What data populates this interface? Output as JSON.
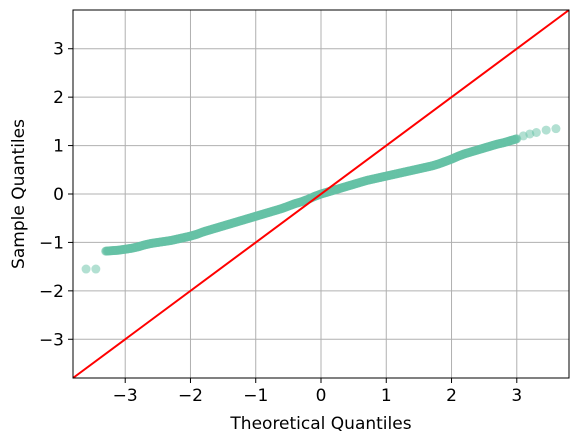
{
  "chart_data": {
    "type": "scatter",
    "title": "",
    "xlabel": "Theoretical Quantiles",
    "ylabel": "Sample Quantiles",
    "xlim": [
      -3.8,
      3.8
    ],
    "ylim": [
      -3.8,
      3.8
    ],
    "xticks": [
      -3,
      -2,
      -1,
      0,
      1,
      2,
      3
    ],
    "yticks": [
      -3,
      -2,
      -1,
      0,
      1,
      2,
      3
    ],
    "xtick_labels": [
      "−3",
      "−2",
      "−1",
      "0",
      "1",
      "2",
      "3"
    ],
    "ytick_labels": [
      "−3",
      "−2",
      "−1",
      "0",
      "1",
      "2",
      "3"
    ],
    "grid": true,
    "reference_line": {
      "points": [
        [
          -3.8,
          -3.8
        ],
        [
          3.8,
          3.8
        ]
      ],
      "color": "#ff0000"
    },
    "series": [
      {
        "marker_color": "#66c2a5",
        "x": [
          -3.6,
          -3.45,
          -3.3,
          -3.2,
          -3.1,
          -3.0,
          -2.9,
          -2.8,
          -2.7,
          -2.6,
          -2.5,
          -2.4,
          -2.3,
          -2.2,
          -2.1,
          -2.0,
          -1.9,
          -1.8,
          -1.7,
          -1.6,
          -1.5,
          -1.4,
          -1.3,
          -1.2,
          -1.1,
          -1.0,
          -0.9,
          -0.8,
          -0.7,
          -0.6,
          -0.5,
          -0.4,
          -0.3,
          -0.2,
          -0.1,
          0.0,
          0.1,
          0.2,
          0.3,
          0.4,
          0.5,
          0.6,
          0.7,
          0.8,
          0.9,
          1.0,
          1.1,
          1.2,
          1.3,
          1.4,
          1.5,
          1.6,
          1.7,
          1.8,
          1.9,
          2.0,
          2.1,
          2.2,
          2.3,
          2.4,
          2.5,
          2.6,
          2.7,
          2.8,
          2.9,
          3.0,
          3.1,
          3.2,
          3.3,
          3.45,
          3.6
        ],
        "y": [
          -1.55,
          -1.55,
          -1.18,
          -1.17,
          -1.16,
          -1.14,
          -1.12,
          -1.09,
          -1.05,
          -1.02,
          -1.0,
          -0.98,
          -0.96,
          -0.93,
          -0.9,
          -0.87,
          -0.83,
          -0.78,
          -0.74,
          -0.7,
          -0.66,
          -0.62,
          -0.58,
          -0.54,
          -0.5,
          -0.46,
          -0.42,
          -0.38,
          -0.34,
          -0.3,
          -0.25,
          -0.2,
          -0.16,
          -0.11,
          -0.05,
          0.0,
          0.04,
          0.08,
          0.12,
          0.16,
          0.2,
          0.24,
          0.28,
          0.31,
          0.34,
          0.37,
          0.4,
          0.43,
          0.46,
          0.49,
          0.52,
          0.55,
          0.58,
          0.62,
          0.67,
          0.72,
          0.78,
          0.83,
          0.87,
          0.91,
          0.95,
          0.99,
          1.03,
          1.06,
          1.1,
          1.14,
          1.2,
          1.24,
          1.27,
          1.32,
          1.35
        ]
      }
    ]
  }
}
